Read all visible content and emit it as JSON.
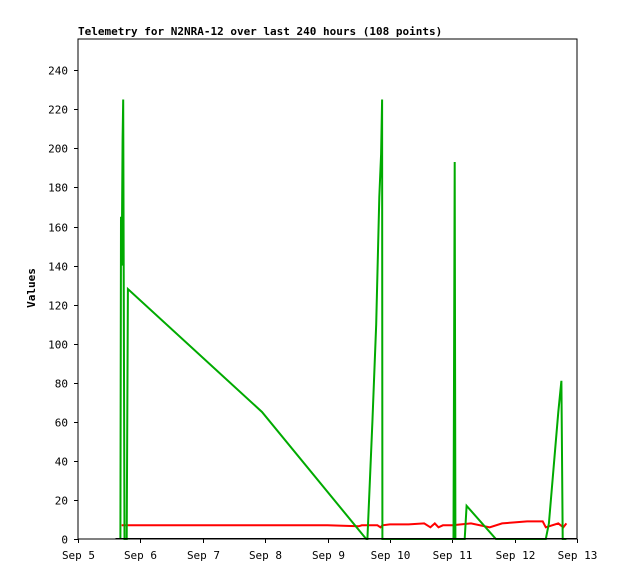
{
  "chart_data": {
    "type": "line",
    "title": "Telemetry for N2NRA-12 over last 240 hours (108 points)",
    "xlabel": "",
    "ylabel": "Values",
    "x_ticks": [
      "Sep 5",
      "Sep 6",
      "Sep 7",
      "Sep 8",
      "Sep 9",
      "Sep 10",
      "Sep 11",
      "Sep 12",
      "Sep 13"
    ],
    "y_ticks": [
      0,
      20,
      40,
      60,
      80,
      100,
      120,
      140,
      160,
      180,
      200,
      220,
      240
    ],
    "xlim": [
      0,
      8
    ],
    "ylim": [
      0,
      256
    ],
    "grid": false,
    "legend": "none",
    "series": [
      {
        "color": "#ff0000",
        "points": [
          [
            0.7,
            7
          ],
          [
            1.0,
            7
          ],
          [
            2.0,
            7
          ],
          [
            3.0,
            7
          ],
          [
            4.0,
            7
          ],
          [
            4.5,
            6.5
          ],
          [
            4.55,
            7
          ],
          [
            4.8,
            7
          ],
          [
            4.85,
            6
          ],
          [
            4.88,
            7
          ],
          [
            5.0,
            7.5
          ],
          [
            5.3,
            7.5
          ],
          [
            5.55,
            8
          ],
          [
            5.65,
            6
          ],
          [
            5.72,
            8
          ],
          [
            5.78,
            6
          ],
          [
            5.85,
            7
          ],
          [
            6.0,
            7
          ],
          [
            6.3,
            8
          ],
          [
            6.6,
            6
          ],
          [
            6.8,
            8
          ],
          [
            7.0,
            8.5
          ],
          [
            7.2,
            9
          ],
          [
            7.45,
            9
          ],
          [
            7.5,
            6
          ],
          [
            7.7,
            8
          ],
          [
            7.78,
            6
          ],
          [
            7.83,
            8
          ]
        ]
      },
      {
        "color": "#00aa00",
        "points": [
          [
            0.68,
            0
          ],
          [
            0.69,
            165
          ],
          [
            0.7,
            140
          ],
          [
            0.715,
            205
          ],
          [
            0.725,
            225
          ],
          [
            0.735,
            120
          ],
          [
            0.745,
            0
          ],
          [
            0.78,
            0
          ],
          [
            0.8,
            128
          ],
          [
            2.95,
            65
          ],
          [
            4.62,
            0
          ],
          [
            4.64,
            0
          ],
          [
            4.72,
            60
          ],
          [
            4.78,
            110
          ],
          [
            4.83,
            175
          ],
          [
            4.86,
            197
          ],
          [
            4.875,
            225
          ],
          [
            4.88,
            0
          ],
          [
            6.0,
            0
          ],
          [
            6.02,
            0
          ],
          [
            6.04,
            193
          ],
          [
            6.05,
            0
          ],
          [
            6.2,
            0
          ],
          [
            6.23,
            17
          ],
          [
            6.7,
            0
          ],
          [
            7.5,
            0
          ],
          [
            7.55,
            8
          ],
          [
            7.7,
            65
          ],
          [
            7.75,
            81
          ],
          [
            7.77,
            0
          ],
          [
            7.83,
            0
          ]
        ]
      }
    ]
  }
}
